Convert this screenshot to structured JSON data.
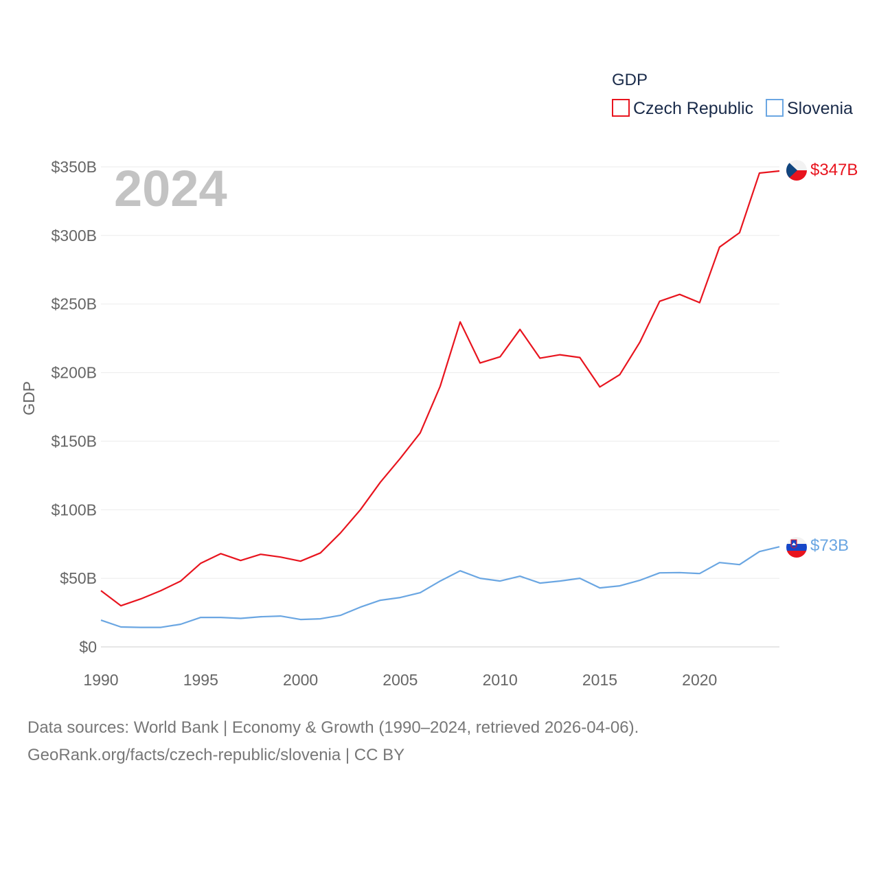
{
  "chart_data": {
    "type": "line",
    "year_label": "2024",
    "ylabel": "GDP",
    "ylim": [
      0,
      350
    ],
    "xlim": [
      1990,
      2024
    ],
    "y_ticks": [
      {
        "value": 0,
        "label": "$0"
      },
      {
        "value": 50,
        "label": "$50B"
      },
      {
        "value": 100,
        "label": "$100B"
      },
      {
        "value": 150,
        "label": "$150B"
      },
      {
        "value": 200,
        "label": "$200B"
      },
      {
        "value": 250,
        "label": "$250B"
      },
      {
        "value": 300,
        "label": "$300B"
      },
      {
        "value": 350,
        "label": "$350B"
      }
    ],
    "x_ticks": [
      {
        "value": 1990,
        "label": "1990"
      },
      {
        "value": 1995,
        "label": "1995"
      },
      {
        "value": 2000,
        "label": "2000"
      },
      {
        "value": 2005,
        "label": "2005"
      },
      {
        "value": 2010,
        "label": "2010"
      },
      {
        "value": 2015,
        "label": "2015"
      },
      {
        "value": 2020,
        "label": "2020"
      }
    ],
    "legend_title": "GDP",
    "x": [
      1990,
      1991,
      1992,
      1993,
      1994,
      1995,
      1996,
      1997,
      1998,
      1999,
      2000,
      2001,
      2002,
      2003,
      2004,
      2005,
      2006,
      2007,
      2008,
      2009,
      2010,
      2011,
      2012,
      2013,
      2014,
      2015,
      2016,
      2017,
      2018,
      2019,
      2020,
      2021,
      2022,
      2023,
      2024
    ],
    "series": [
      {
        "name": "Czech Republic",
        "color": "#e8141e",
        "end_label": "$347B",
        "values": [
          41,
          30,
          35,
          41,
          48,
          61,
          68,
          63,
          67.5,
          65.5,
          62.5,
          68.5,
          83,
          100,
          120,
          137.5,
          156,
          190,
          237,
          207,
          211.5,
          231.5,
          210.5,
          213,
          211,
          189.5,
          198.5,
          222,
          252,
          257,
          251,
          291.5,
          302,
          345.5,
          347
        ]
      },
      {
        "name": "Slovenia",
        "color": "#6aa6e2",
        "end_label": "$73B",
        "values": [
          19.5,
          14.5,
          14.2,
          14.2,
          16.5,
          21.5,
          21.5,
          20.8,
          22,
          22.5,
          20,
          20.5,
          23,
          29,
          34,
          36,
          39.5,
          48,
          55.5,
          50,
          48,
          51.5,
          46.5,
          48,
          50,
          43,
          44.5,
          48.5,
          54,
          54.2,
          53.5,
          61.5,
          60,
          69.5,
          73
        ]
      }
    ]
  },
  "footer": {
    "line1": "Data sources: World Bank | Economy & Growth (1990–2024, retrieved 2026-04-06).",
    "line2": "GeoRank.org/facts/czech-republic/slovenia | CC BY"
  }
}
